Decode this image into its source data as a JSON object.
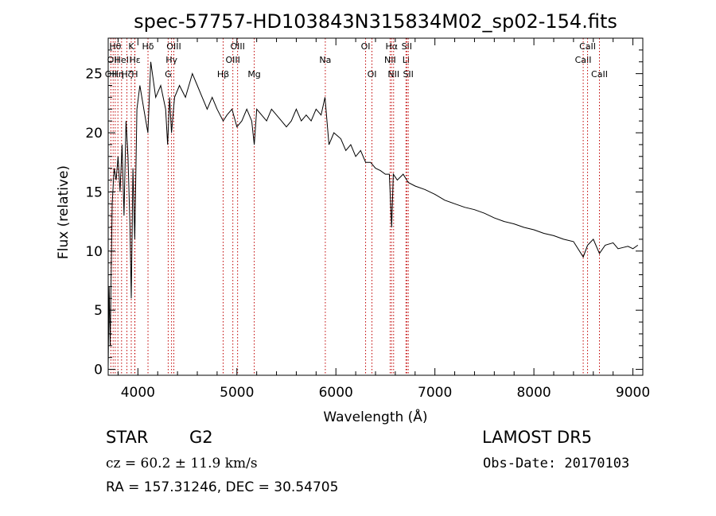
{
  "chart_data": {
    "type": "line",
    "title": "spec-57757-HD103843N315834M02_sp02-154.fits",
    "xlabel": "Wavelength (Å)",
    "ylabel": "Flux (relative)",
    "xlim": [
      3700,
      9100
    ],
    "ylim": [
      -0.5,
      28
    ],
    "x_ticks": [
      4000,
      5000,
      6000,
      7000,
      8000,
      9000
    ],
    "y_ticks": [
      0,
      5,
      10,
      15,
      20,
      25
    ],
    "grid": false,
    "line_color": "#000000",
    "marker_color": "#c00000",
    "series": [
      {
        "x": [
          3700,
          3710,
          3720,
          3740,
          3760,
          3780,
          3800,
          3820,
          3840,
          3860,
          3880,
          3900,
          3920,
          3933,
          3950,
          3968,
          3990,
          4020,
          4060,
          4101,
          4130,
          4180,
          4230,
          4280,
          4300,
          4320,
          4340,
          4370,
          4420,
          4480,
          4550,
          4600,
          4650,
          4700,
          4750,
          4800,
          4861,
          4900,
          4950,
          5000,
          5050,
          5100,
          5150,
          5175,
          5200,
          5250,
          5300,
          5350,
          5400,
          5450,
          5500,
          5550,
          5600,
          5650,
          5700,
          5750,
          5800,
          5850,
          5890,
          5930,
          5980,
          6050,
          6100,
          6150,
          6200,
          6250,
          6300,
          6350,
          6400,
          6450,
          6500,
          6540,
          6563,
          6580,
          6620,
          6680,
          6730,
          6800,
          6900,
          7000,
          7100,
          7200,
          7300,
          7400,
          7500,
          7600,
          7700,
          7800,
          7900,
          8000,
          8100,
          8200,
          8300,
          8400,
          8498,
          8542,
          8600,
          8662,
          8720,
          8800,
          8850,
          8900,
          8950,
          9000,
          9050
        ],
        "y": [
          0.3,
          7,
          2,
          14,
          17,
          16,
          18,
          15,
          19,
          13,
          21,
          18,
          12,
          6,
          17,
          11,
          22,
          24,
          22,
          20,
          26,
          23,
          24,
          22,
          19,
          23,
          20,
          23,
          24,
          23,
          25,
          24,
          23,
          22,
          23,
          22,
          21,
          21.5,
          22,
          20.5,
          21,
          22,
          21,
          19,
          22,
          21.5,
          21,
          22,
          21.5,
          21,
          20.5,
          21,
          22,
          21,
          21.5,
          21,
          22,
          21.5,
          23,
          19,
          20,
          19.5,
          18.5,
          19,
          18,
          18.5,
          17.5,
          17.5,
          17,
          16.8,
          16.5,
          16.5,
          12,
          16.5,
          16,
          16.5,
          15.8,
          15.5,
          15.2,
          14.8,
          14.3,
          14,
          13.7,
          13.5,
          13.2,
          12.8,
          12.5,
          12.3,
          12,
          11.8,
          11.5,
          11.3,
          11,
          10.8,
          9.5,
          10.5,
          11,
          9.8,
          10.5,
          10.7,
          10.2,
          10.3,
          10.4,
          10.2,
          10.5
        ]
      }
    ],
    "line_markers": [
      {
        "wl": 3727,
        "label": "OII",
        "row": 3
      },
      {
        "wl": 3750,
        "label": "OII",
        "row": 2
      },
      {
        "wl": 3771,
        "label": "Hθ",
        "row": 1
      },
      {
        "wl": 3798,
        "label": "Hη",
        "row": 3
      },
      {
        "wl": 3835,
        "label": "HeI",
        "row": 2
      },
      {
        "wl": 3889,
        "label": "Hζ",
        "row": 3
      },
      {
        "wl": 3933,
        "label": "K",
        "row": 1
      },
      {
        "wl": 3968,
        "label": "H",
        "row": 3
      },
      {
        "wl": 3970,
        "label": "Hε",
        "row": 2
      },
      {
        "wl": 4102,
        "label": "Hδ",
        "row": 1
      },
      {
        "wl": 4306,
        "label": "G",
        "row": 3
      },
      {
        "wl": 4340,
        "label": "Hγ",
        "row": 2
      },
      {
        "wl": 4363,
        "label": "OIII",
        "row": 1
      },
      {
        "wl": 4861,
        "label": "Hβ",
        "row": 3
      },
      {
        "wl": 4959,
        "label": "OIII",
        "row": 2
      },
      {
        "wl": 5007,
        "label": "OIII",
        "row": 1
      },
      {
        "wl": 5175,
        "label": "Mg",
        "row": 3
      },
      {
        "wl": 5893,
        "label": "Na",
        "row": 2
      },
      {
        "wl": 6300,
        "label": "OI",
        "row": 1
      },
      {
        "wl": 6364,
        "label": "OI",
        "row": 3
      },
      {
        "wl": 6548,
        "label": "NII",
        "row": 2
      },
      {
        "wl": 6563,
        "label": "Hα",
        "row": 1
      },
      {
        "wl": 6583,
        "label": "NII",
        "row": 3
      },
      {
        "wl": 6708,
        "label": "Li",
        "row": 2
      },
      {
        "wl": 6716,
        "label": "SII",
        "row": 1
      },
      {
        "wl": 6731,
        "label": "SII",
        "row": 3
      },
      {
        "wl": 8498,
        "label": "CaII",
        "row": 2
      },
      {
        "wl": 8542,
        "label": "CaII",
        "row": 1
      },
      {
        "wl": 8662,
        "label": "CaII",
        "row": 3
      }
    ]
  },
  "info": {
    "object_class": "STAR",
    "subclass": "G2",
    "survey": "LAMOST DR5",
    "redshift_text": "cz = 60.2 ± 11.9 km/s",
    "obs_date_text": "Obs-Date: 20170103",
    "coords_text": "RA = 157.31246, DEC =  30.54705"
  }
}
